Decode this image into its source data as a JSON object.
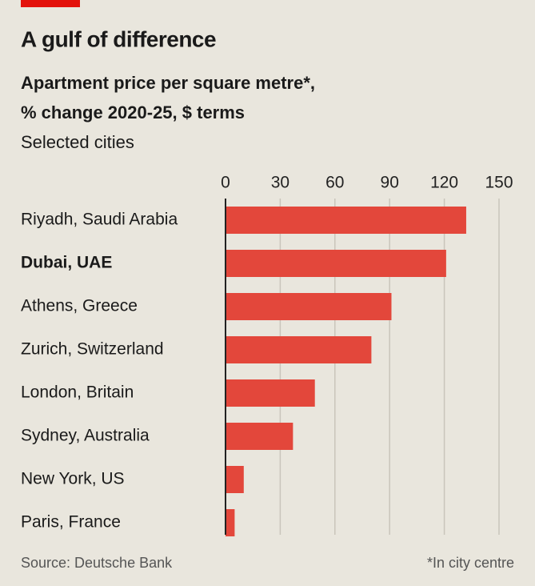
{
  "chart_data": {
    "type": "bar",
    "orientation": "horizontal",
    "title": "A gulf of difference",
    "subtitle": [
      "Apartment price per square metre*,",
      "% change 2020-25, $ terms"
    ],
    "description": "Selected cities",
    "categories": [
      "Riyadh, Saudi Arabia",
      "Dubai, UAE",
      "Athens, Greece",
      "Zurich, Switzerland",
      "London, Britain",
      "Sydney, Australia",
      "New York, US",
      "Paris, France"
    ],
    "values": [
      132,
      121,
      91,
      80,
      49,
      37,
      10,
      5
    ],
    "highlight": "Dubai, UAE",
    "color": "#e3473b",
    "xlim": [
      0,
      150
    ],
    "xticks": [
      0,
      30,
      60,
      90,
      120,
      150
    ],
    "grid": true,
    "source": "Source: Deutsche Bank",
    "note": "*In city centre"
  }
}
